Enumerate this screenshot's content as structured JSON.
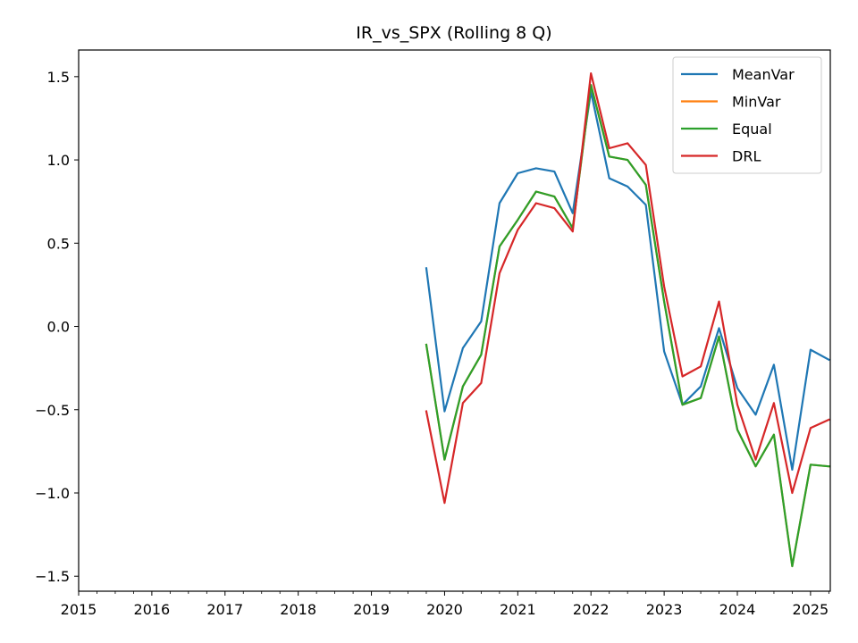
{
  "chart_data": {
    "type": "line",
    "title": "IR_vs_SPX (Rolling 8 Q)",
    "xlabel": "",
    "ylabel": "",
    "xlim": [
      2015.0,
      2025.27
    ],
    "ylim": [
      -1.59,
      1.66
    ],
    "xticks": [
      2015,
      2016,
      2017,
      2018,
      2019,
      2020,
      2021,
      2022,
      2023,
      2024,
      2025
    ],
    "xtick_labels": [
      "2015",
      "2016",
      "2017",
      "2018",
      "2019",
      "2020",
      "2021",
      "2022",
      "2023",
      "2024",
      "2025"
    ],
    "yticks": [
      1.5,
      1.0,
      0.5,
      0.0,
      -0.5,
      -1.0,
      -1.5
    ],
    "ytick_labels": [
      "1.5",
      "1.0",
      "0.5",
      "0.0",
      "−0.5",
      "−1.0",
      "−1.5"
    ],
    "grid": false,
    "legend_position": "top-right",
    "x": [
      2019.75,
      2020.0,
      2020.25,
      2020.5,
      2020.75,
      2021.0,
      2021.25,
      2021.5,
      2021.75,
      2022.0,
      2022.25,
      2022.5,
      2022.75,
      2023.0,
      2023.25,
      2023.5,
      2023.75,
      2024.0,
      2024.25,
      2024.5,
      2024.75,
      2025.0,
      2025.25
    ],
    "series": [
      {
        "name": "MeanVar",
        "color": "#1f77b4",
        "values": [
          0.35,
          -0.51,
          -0.13,
          0.03,
          0.74,
          0.92,
          0.95,
          0.93,
          0.68,
          1.41,
          0.89,
          0.84,
          0.73,
          -0.15,
          -0.47,
          -0.36,
          -0.01,
          -0.37,
          -0.53,
          -0.23,
          -0.86,
          -0.14,
          -0.2
        ]
      },
      {
        "name": "MinVar",
        "color": "#ff7f0e",
        "values": [
          -0.11,
          -0.8,
          -0.36,
          -0.17,
          0.48,
          0.64,
          0.81,
          0.78,
          0.59,
          1.45,
          1.02,
          1.0,
          0.85,
          0.15,
          -0.47,
          -0.43,
          -0.06,
          -0.62,
          -0.84,
          -0.65,
          -1.44,
          -0.83,
          -0.84
        ]
      },
      {
        "name": "Equal",
        "color": "#2ca02c",
        "values": [
          -0.11,
          -0.8,
          -0.36,
          -0.17,
          0.48,
          0.64,
          0.81,
          0.78,
          0.59,
          1.45,
          1.02,
          1.0,
          0.85,
          0.15,
          -0.47,
          -0.43,
          -0.06,
          -0.62,
          -0.84,
          -0.65,
          -1.44,
          -0.83,
          -0.84
        ]
      },
      {
        "name": "DRL",
        "color": "#d62728",
        "values": [
          -0.51,
          -1.06,
          -0.46,
          -0.34,
          0.32,
          0.58,
          0.74,
          0.71,
          0.57,
          1.52,
          1.07,
          1.1,
          0.97,
          0.24,
          -0.3,
          -0.24,
          0.15,
          -0.47,
          -0.8,
          -0.46,
          -1.0,
          -0.61,
          -0.56
        ]
      }
    ]
  }
}
